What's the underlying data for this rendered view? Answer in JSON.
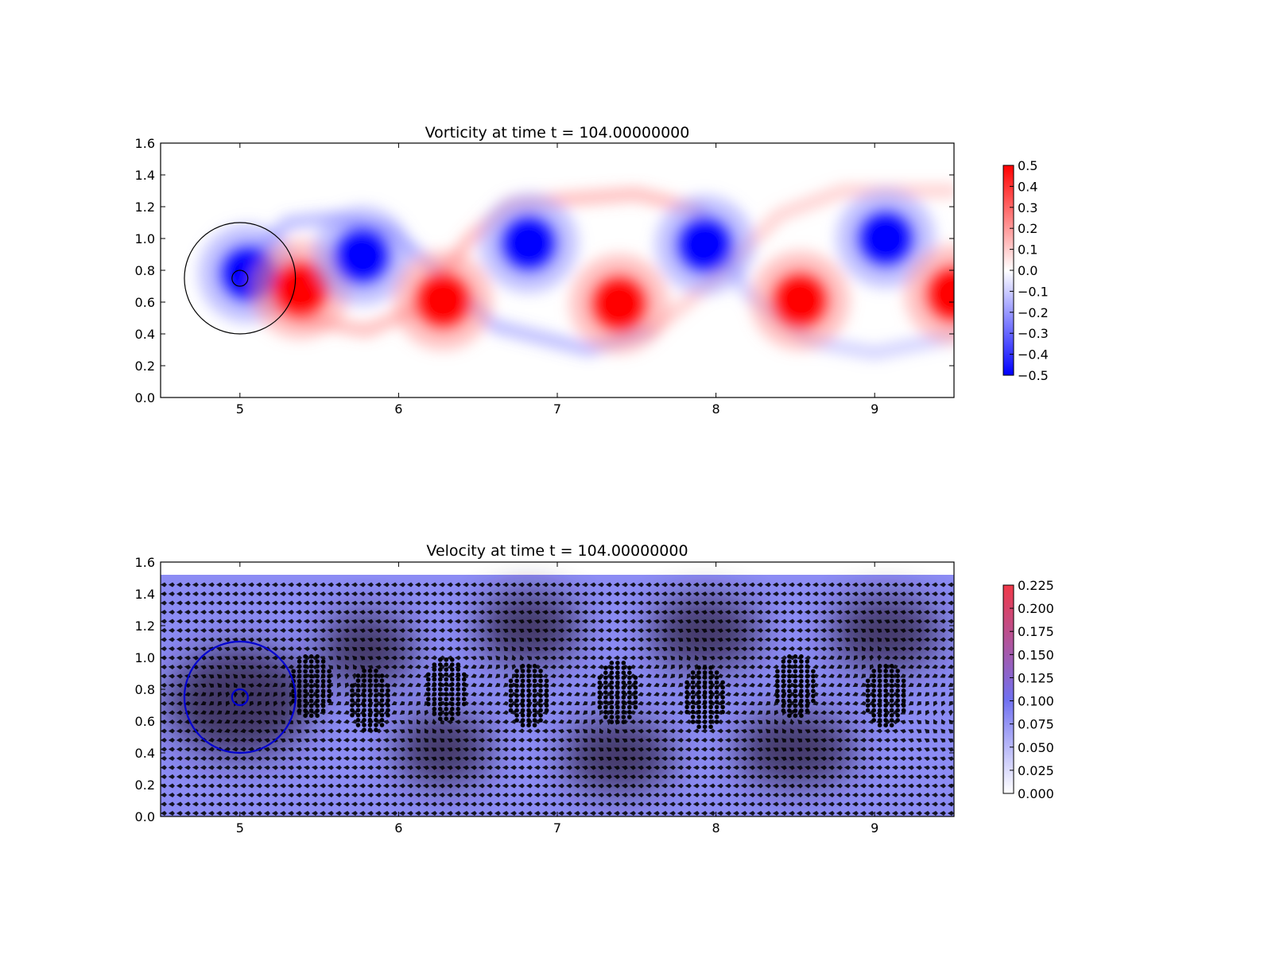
{
  "chart_data": [
    {
      "type": "heatmap",
      "title": "Vorticity at time t =   104.00000000",
      "xlabel": "",
      "ylabel": "",
      "xlim": [
        4.5,
        9.5
      ],
      "ylim": [
        0.0,
        1.6
      ],
      "xticks": [
        "5",
        "6",
        "7",
        "8",
        "9"
      ],
      "yticks": [
        "0.0",
        "0.2",
        "0.4",
        "0.6",
        "0.8",
        "1.0",
        "1.2",
        "1.4",
        "1.6"
      ],
      "colorbar": {
        "range": [
          -0.5,
          0.5
        ],
        "ticks": [
          "0.5",
          "0.4",
          "0.3",
          "0.2",
          "0.1",
          "0.0",
          "−0.1",
          "−0.2",
          "−0.3",
          "−0.4",
          "−0.5"
        ],
        "colors": [
          "#0000ff",
          "#ffffff",
          "#ff0000"
        ]
      },
      "vortices": [
        {
          "x": 5.05,
          "y": 0.78,
          "sign": -1,
          "strength": 0.5
        },
        {
          "x": 5.38,
          "y": 0.68,
          "sign": 1,
          "strength": 0.5
        },
        {
          "x": 5.77,
          "y": 0.89,
          "sign": -1,
          "strength": 0.5
        },
        {
          "x": 6.28,
          "y": 0.61,
          "sign": 1,
          "strength": 0.5
        },
        {
          "x": 6.82,
          "y": 0.97,
          "sign": -1,
          "strength": 0.5
        },
        {
          "x": 7.39,
          "y": 0.59,
          "sign": 1,
          "strength": 0.5
        },
        {
          "x": 7.93,
          "y": 0.96,
          "sign": -1,
          "strength": 0.5
        },
        {
          "x": 8.53,
          "y": 0.61,
          "sign": 1,
          "strength": 0.5
        },
        {
          "x": 9.07,
          "y": 1.0,
          "sign": -1,
          "strength": 0.5
        },
        {
          "x": 9.5,
          "y": 0.65,
          "sign": 1,
          "strength": 0.5
        }
      ],
      "cylinder": {
        "x": 5.0,
        "y": 0.75,
        "radius": 0.05
      },
      "outer_circle": {
        "x": 5.0,
        "y": 0.75,
        "radius": 0.35
      }
    },
    {
      "type": "quiver",
      "title": "Velocity at time t =   104.00000000",
      "xlabel": "",
      "ylabel": "",
      "xlim": [
        4.5,
        9.5
      ],
      "ylim": [
        0.0,
        1.6
      ],
      "xticks": [
        "5",
        "6",
        "7",
        "8",
        "9"
      ],
      "yticks": [
        "0.0",
        "0.2",
        "0.4",
        "0.6",
        "0.8",
        "1.0",
        "1.2",
        "1.4",
        "1.6"
      ],
      "colorbar": {
        "range": [
          0.0,
          0.225
        ],
        "ticks": [
          "0.225",
          "0.200",
          "0.175",
          "0.150",
          "0.125",
          "0.100",
          "0.075",
          "0.050",
          "0.025",
          "0.000"
        ],
        "colors": [
          "#ffffff",
          "#7070f0",
          "#f03848"
        ]
      },
      "field_top": 1.52,
      "cylinder": {
        "x": 5.0,
        "y": 0.75,
        "radius": 0.05
      },
      "outer_circle": {
        "x": 5.0,
        "y": 0.75,
        "radius": 0.35
      },
      "particle_clusters": [
        {
          "x": 5.45,
          "y": 0.82
        },
        {
          "x": 5.82,
          "y": 0.73
        },
        {
          "x": 6.3,
          "y": 0.8
        },
        {
          "x": 6.82,
          "y": 0.76
        },
        {
          "x": 7.38,
          "y": 0.78
        },
        {
          "x": 7.93,
          "y": 0.75
        },
        {
          "x": 8.5,
          "y": 0.82
        },
        {
          "x": 9.07,
          "y": 0.76
        }
      ]
    }
  ]
}
